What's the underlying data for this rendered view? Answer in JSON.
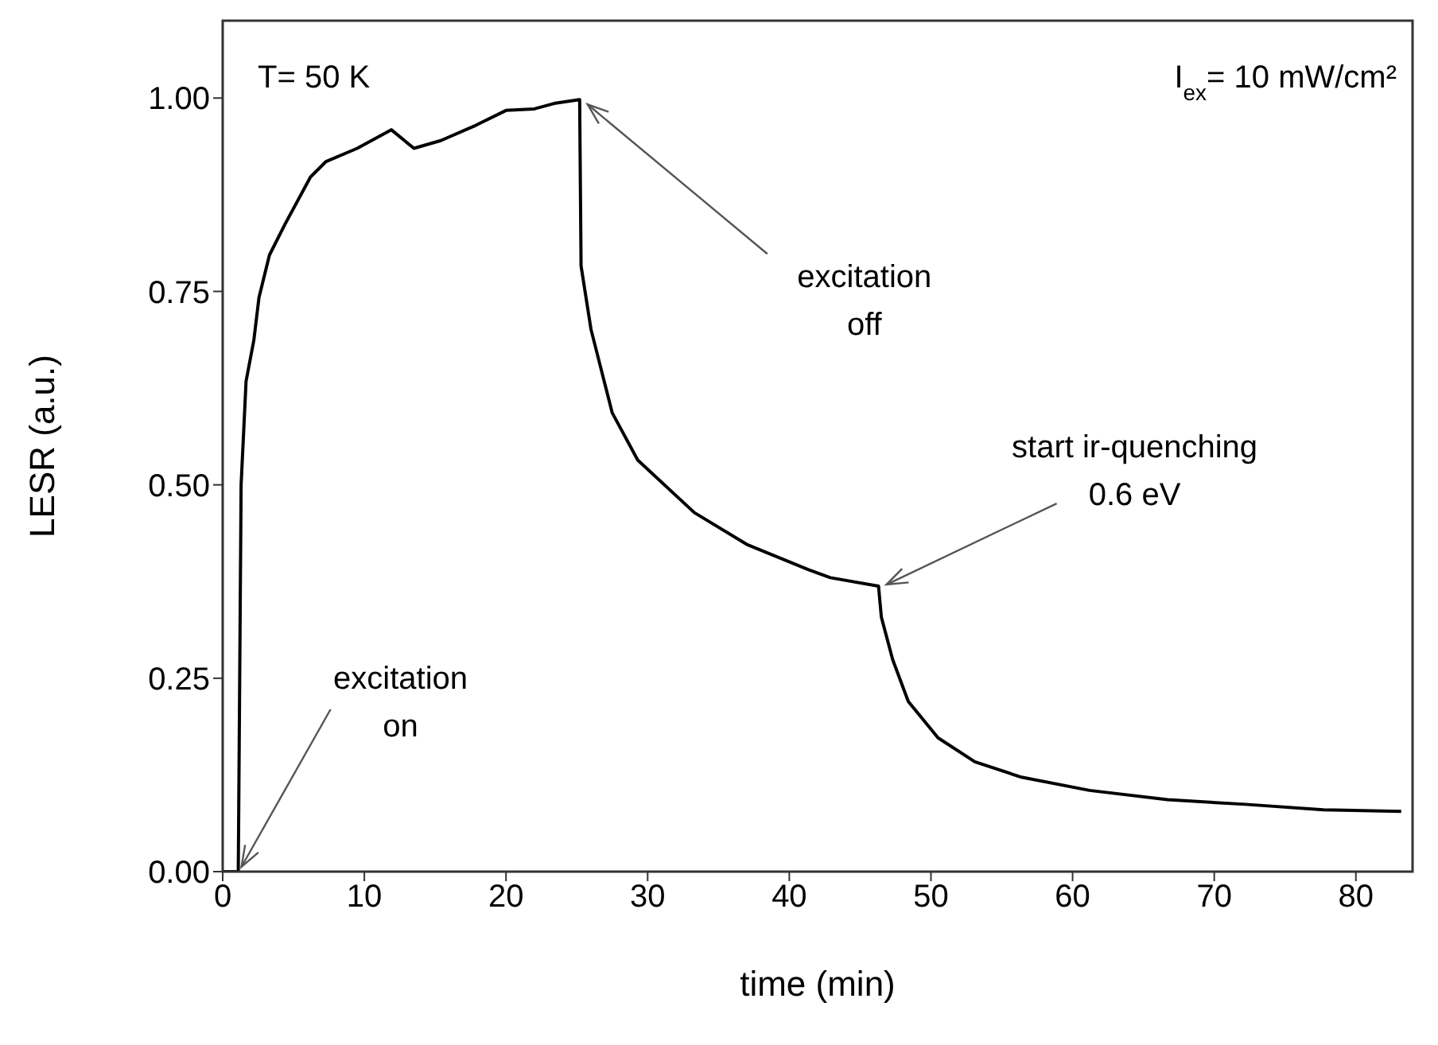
{
  "chart_data": {
    "type": "line",
    "xlabel": "time (min)",
    "ylabel": "LESR (a.u.)",
    "x": [
      0,
      1.1,
      1.3,
      1.65,
      2.2,
      2.56,
      3.3,
      4.4,
      6.2,
      7.3,
      9.5,
      11.9,
      13.5,
      15.4,
      17.9,
      20,
      22,
      23.4,
      25.2,
      25.3,
      26,
      27.5,
      29.3,
      33.3,
      37,
      41.4,
      42.9,
      46.3,
      46.5,
      47.3,
      48.4,
      50.5,
      53.1,
      56.4,
      61.2,
      66.7,
      72.2,
      77.7,
      83.2
    ],
    "series": [
      {
        "color": "#000000",
        "values": [
          0,
          0,
          0.5,
          0.634,
          0.687,
          0.742,
          0.797,
          0.837,
          0.898,
          0.918,
          0.935,
          0.959,
          0.935,
          0.945,
          0.965,
          0.984,
          0.986,
          0.993,
          0.998,
          0.783,
          0.701,
          0.593,
          0.532,
          0.464,
          0.423,
          0.39,
          0.38,
          0.369,
          0.329,
          0.274,
          0.22,
          0.173,
          0.142,
          0.122,
          0.105,
          0.093,
          0.087,
          0.08,
          0.078
        ]
      }
    ],
    "xlim": [
      0,
      84
    ],
    "ylim": [
      0,
      1.1
    ],
    "xticks": [
      0,
      10,
      20,
      30,
      40,
      50,
      60,
      70,
      80
    ],
    "yticks": [
      {
        "value": 0,
        "label": "0.00"
      },
      {
        "value": 0.25,
        "label": "0.25"
      },
      {
        "value": 0.5,
        "label": "0.50"
      },
      {
        "value": 0.75,
        "label": "0.75"
      },
      {
        "value": 1,
        "label": "1.00"
      }
    ],
    "annotations": [
      {
        "text": "excitation\non",
        "x": 1.1,
        "y": 0
      },
      {
        "text": "excitation\noff",
        "x": 25.2,
        "y": 1.0
      },
      {
        "text": "start ir-quenching\n0.6 eV",
        "x": 46.3,
        "y": 0.369
      },
      "T= 50 K",
      "I$_{ex}$= 10 mW/cm²"
    ]
  }
}
